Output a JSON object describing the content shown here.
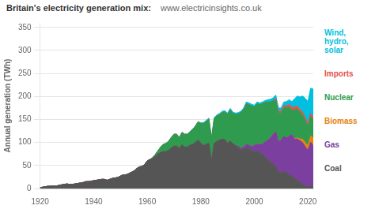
{
  "chart_data": {
    "type": "area",
    "stacked": true,
    "title": "Britain's electricity generation mix:",
    "subtitle": "www.electricinsights.co.uk",
    "ylabel": "Annual generation (TWh)",
    "xlim": [
      1920,
      2022
    ],
    "xticks": [
      1920,
      1940,
      1960,
      1980,
      2000,
      2020
    ],
    "ylim": [
      0,
      360
    ],
    "yticks": [
      0,
      50,
      100,
      150,
      200,
      250,
      300,
      350
    ],
    "grid": true,
    "legend": "right",
    "x": [
      1920,
      1921,
      1922,
      1923,
      1924,
      1925,
      1926,
      1927,
      1928,
      1929,
      1930,
      1931,
      1932,
      1933,
      1934,
      1935,
      1936,
      1937,
      1938,
      1939,
      1940,
      1941,
      1942,
      1943,
      1944,
      1945,
      1946,
      1947,
      1948,
      1949,
      1950,
      1951,
      1952,
      1953,
      1954,
      1955,
      1956,
      1957,
      1958,
      1959,
      1960,
      1961,
      1962,
      1963,
      1964,
      1965,
      1966,
      1967,
      1968,
      1969,
      1970,
      1971,
      1972,
      1973,
      1974,
      1975,
      1976,
      1977,
      1978,
      1979,
      1980,
      1981,
      1982,
      1983,
      1984,
      1985,
      1986,
      1987,
      1988,
      1989,
      1990,
      1991,
      1992,
      1993,
      1994,
      1995,
      1996,
      1997,
      1998,
      1999,
      2000,
      2001,
      2002,
      2003,
      2004,
      2005,
      2006,
      2007,
      2008,
      2009,
      2010,
      2011,
      2012,
      2013,
      2014,
      2015,
      2016,
      2017,
      2018,
      2019,
      2020,
      2021,
      2022
    ],
    "series": [
      {
        "name": "Coal",
        "color": "#555555",
        "values": [
          2,
          3,
          4,
          5,
          5,
          6,
          5,
          7,
          8,
          9,
          10,
          9,
          9,
          10,
          11,
          12,
          13,
          15,
          15,
          16,
          17,
          18,
          19,
          20,
          20,
          18,
          20,
          22,
          23,
          24,
          27,
          30,
          30,
          32,
          35,
          38,
          43,
          47,
          48,
          52,
          60,
          63,
          65,
          70,
          75,
          78,
          80,
          80,
          83,
          88,
          92,
          92,
          87,
          95,
          90,
          90,
          94,
          96,
          100,
          105,
          98,
          93,
          96,
          98,
          58,
          98,
          102,
          105,
          107,
          106,
          98,
          103,
          97,
          93,
          88,
          83,
          86,
          88,
          86,
          83,
          80,
          82,
          79,
          74,
          69,
          63,
          58,
          53,
          48,
          36,
          34,
          37,
          34,
          29,
          27,
          22,
          18,
          14,
          10,
          6,
          3,
          6,
          3
        ]
      },
      {
        "name": "Gas",
        "color": "#7B3FA0",
        "values": [
          0,
          0,
          0,
          0,
          0,
          0,
          0,
          0,
          0,
          0,
          0,
          0,
          0,
          0,
          0,
          0,
          0,
          0,
          0,
          0,
          0,
          0,
          0,
          0,
          0,
          0,
          0,
          0,
          0,
          0,
          0,
          0,
          0,
          0,
          0,
          0,
          0,
          0,
          0,
          0,
          0,
          0,
          0,
          0,
          0,
          0,
          0,
          0,
          0,
          0,
          0,
          0,
          0,
          0,
          0,
          0,
          0,
          0,
          0,
          0,
          0,
          0,
          0,
          0,
          0,
          0,
          0,
          0,
          0,
          0,
          0,
          0,
          0,
          0,
          4,
          4,
          4,
          8,
          8,
          8,
          14,
          14,
          17,
          22,
          32,
          42,
          52,
          65,
          76,
          65,
          72,
          76,
          76,
          85,
          90,
          85,
          90,
          90,
          90,
          85,
          80,
          95,
          90
        ]
      },
      {
        "name": "Biomass",
        "color": "#E8820A",
        "values": [
          0,
          0,
          0,
          0,
          0,
          0,
          0,
          0,
          0,
          0,
          0,
          0,
          0,
          0,
          0,
          0,
          0,
          0,
          0,
          0,
          0,
          0,
          0,
          0,
          0,
          0,
          0,
          0,
          0,
          0,
          0,
          0,
          0,
          0,
          0,
          0,
          0,
          0,
          0,
          0,
          0,
          0,
          0,
          0,
          0,
          0,
          0,
          0,
          0,
          0,
          0,
          0,
          0,
          0,
          0,
          0,
          0,
          0,
          0,
          0,
          0,
          0,
          0,
          0,
          0,
          0,
          0,
          0,
          0,
          0,
          0,
          0,
          0,
          0,
          0,
          0,
          0,
          0,
          0,
          0,
          0,
          0,
          0,
          0,
          0,
          0,
          0,
          0,
          0,
          0,
          0,
          0,
          0,
          0,
          0,
          1,
          2,
          4,
          7,
          9,
          10,
          13,
          17
        ]
      },
      {
        "name": "Nuclear",
        "color": "#2E9B4E",
        "values": [
          0,
          0,
          0,
          0,
          0,
          0,
          0,
          0,
          0,
          0,
          0,
          0,
          0,
          0,
          0,
          0,
          0,
          0,
          0,
          0,
          0,
          0,
          0,
          0,
          0,
          0,
          0,
          0,
          0,
          0,
          0,
          0,
          0,
          0,
          0,
          0,
          0,
          0,
          0,
          0,
          0,
          0,
          2,
          4,
          7,
          12,
          16,
          18,
          20,
          23,
          26,
          26,
          24,
          27,
          28,
          28,
          30,
          33,
          36,
          40,
          43,
          48,
          50,
          53,
          50,
          54,
          56,
          56,
          58,
          60,
          63,
          68,
          66,
          68,
          70,
          78,
          82,
          88,
          88,
          88,
          83,
          88,
          86,
          88,
          86,
          83,
          78,
          73,
          68,
          63,
          58,
          63,
          66,
          63,
          53,
          63,
          63,
          58,
          53,
          48,
          43,
          43,
          38
        ]
      },
      {
        "name": "Imports",
        "color": "#E8504A",
        "values": [
          0,
          0,
          0,
          0,
          0,
          0,
          0,
          0,
          0,
          0,
          0,
          0,
          0,
          0,
          0,
          0,
          0,
          0,
          0,
          0,
          0,
          0,
          0,
          0,
          0,
          0,
          0,
          0,
          0,
          0,
          0,
          0,
          0,
          0,
          0,
          0,
          0,
          0,
          0,
          0,
          0,
          0,
          0,
          0,
          0,
          0,
          0,
          0,
          0,
          0,
          0,
          0,
          0,
          0,
          0,
          0,
          0,
          0,
          0,
          0,
          0,
          0,
          0,
          0,
          0,
          0,
          0,
          0,
          0,
          0,
          0,
          0,
          0,
          0,
          0,
          0,
          0,
          0,
          0,
          0,
          0,
          0,
          0,
          0,
          0,
          0,
          0,
          0,
          4,
          4,
          4,
          4,
          4,
          6,
          6,
          6,
          6,
          6,
          6,
          6,
          6,
          6,
          6
        ]
      },
      {
        "name": "Wind,\nhydro,\nsolar",
        "color": "#00BFDF",
        "values": [
          0,
          0,
          0,
          0,
          0,
          0,
          0,
          0,
          0,
          0,
          0,
          0,
          0,
          0,
          0,
          0,
          0,
          0,
          0,
          0,
          0,
          0,
          0,
          0,
          0,
          0,
          0,
          0,
          0,
          0,
          0,
          0,
          0,
          0,
          0,
          0,
          0,
          0,
          0,
          0,
          0,
          0,
          0,
          0,
          0,
          0,
          0,
          0,
          0,
          0,
          0,
          0,
          0,
          0,
          0,
          0,
          0,
          0,
          0,
          0,
          2,
          2,
          2,
          2,
          2,
          2,
          2,
          2,
          3,
          3,
          3,
          3,
          3,
          3,
          3,
          3,
          3,
          4,
          4,
          4,
          4,
          4,
          4,
          4,
          4,
          5,
          6,
          6,
          7,
          7,
          7,
          8,
          9,
          10,
          13,
          18,
          22,
          27,
          35,
          42,
          47,
          55,
          62
        ]
      }
    ]
  }
}
